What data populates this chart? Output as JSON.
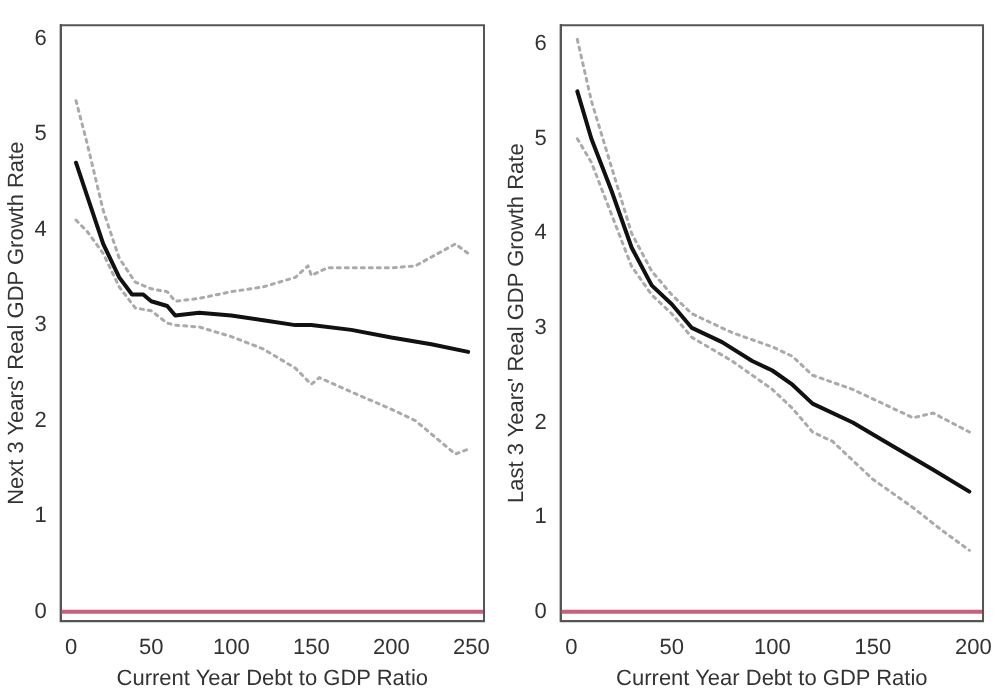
{
  "chart_data": [
    {
      "type": "line",
      "xlabel": "Current Year Debt to GDP Ratio",
      "ylabel": "Next 3 Years' Real GDP Growth Rate",
      "xlim": [
        -6.6,
        257.9
      ],
      "ylim": [
        -0.1,
        6.14
      ],
      "xticks": [
        0,
        50,
        100,
        150,
        200,
        250
      ],
      "yticks": [
        0,
        1,
        2,
        3,
        4,
        5,
        6
      ],
      "grid": false,
      "legend": false,
      "marker": "none",
      "ref_lines": [
        {
          "axis": "y",
          "value": 0,
          "color": "#c8607a"
        }
      ],
      "series": [
        {
          "color": "#aaaaaa",
          "line_style": "dotted",
          "x": [
            3,
            10,
            20,
            30,
            40,
            50,
            60,
            65,
            80,
            100,
            120,
            140,
            148,
            150,
            160,
            180,
            200,
            215,
            240,
            248
          ],
          "values": [
            5.35,
            4.9,
            4.2,
            3.7,
            3.45,
            3.38,
            3.35,
            3.25,
            3.28,
            3.35,
            3.4,
            3.5,
            3.62,
            3.52,
            3.6,
            3.6,
            3.6,
            3.62,
            3.85,
            3.75
          ]
        },
        {
          "color": "#aaaaaa",
          "line_style": "dotted",
          "x": [
            3,
            10,
            20,
            30,
            40,
            50,
            60,
            65,
            80,
            100,
            120,
            140,
            150,
            155,
            175,
            200,
            215,
            240,
            248
          ],
          "values": [
            4.1,
            3.98,
            3.75,
            3.4,
            3.18,
            3.15,
            3.02,
            3.0,
            2.98,
            2.88,
            2.75,
            2.55,
            2.38,
            2.45,
            2.3,
            2.12,
            2.0,
            1.65,
            1.7
          ]
        },
        {
          "color": "#111111",
          "line_style": "solid",
          "x": [
            3,
            10,
            20,
            30,
            38,
            45,
            50,
            60,
            65,
            80,
            100,
            120,
            140,
            150,
            175,
            200,
            225,
            248
          ],
          "values": [
            4.7,
            4.35,
            3.85,
            3.5,
            3.32,
            3.32,
            3.25,
            3.2,
            3.1,
            3.13,
            3.1,
            3.05,
            3.0,
            3.0,
            2.95,
            2.87,
            2.8,
            2.72
          ]
        }
      ]
    },
    {
      "type": "line",
      "xlabel": "Current Year Debt to GDP Ratio",
      "ylabel": "Last 3 Years' Real GDP Growth Rate",
      "xlim": [
        -5.3,
        204.8
      ],
      "ylim": [
        -0.1,
        6.2
      ],
      "xticks": [
        0,
        50,
        100,
        150,
        200
      ],
      "yticks": [
        0,
        1,
        2,
        3,
        4,
        5,
        6
      ],
      "grid": false,
      "legend": false,
      "marker": "none",
      "ref_lines": [
        {
          "axis": "y",
          "value": 0,
          "color": "#c8607a"
        }
      ],
      "series": [
        {
          "color": "#aaaaaa",
          "line_style": "dotted",
          "x": [
            3,
            10,
            20,
            30,
            40,
            50,
            60,
            80,
            100,
            110,
            120,
            140,
            160,
            170,
            180,
            198
          ],
          "values": [
            6.05,
            5.4,
            4.7,
            4.0,
            3.6,
            3.35,
            3.15,
            2.95,
            2.8,
            2.7,
            2.5,
            2.35,
            2.15,
            2.05,
            2.1,
            1.9
          ]
        },
        {
          "color": "#aaaaaa",
          "line_style": "dotted",
          "x": [
            3,
            10,
            20,
            30,
            40,
            50,
            60,
            80,
            100,
            110,
            120,
            130,
            150,
            170,
            185,
            198
          ],
          "values": [
            5.0,
            4.75,
            4.2,
            3.65,
            3.35,
            3.15,
            2.9,
            2.65,
            2.35,
            2.15,
            1.9,
            1.8,
            1.4,
            1.1,
            0.85,
            0.65
          ]
        },
        {
          "color": "#111111",
          "line_style": "solid",
          "x": [
            3,
            10,
            20,
            30,
            40,
            50,
            60,
            75,
            90,
            100,
            110,
            120,
            140,
            160,
            180,
            198
          ],
          "values": [
            5.5,
            5.0,
            4.45,
            3.85,
            3.45,
            3.25,
            3.0,
            2.85,
            2.65,
            2.55,
            2.4,
            2.2,
            2.0,
            1.75,
            1.5,
            1.27
          ]
        }
      ]
    }
  ]
}
